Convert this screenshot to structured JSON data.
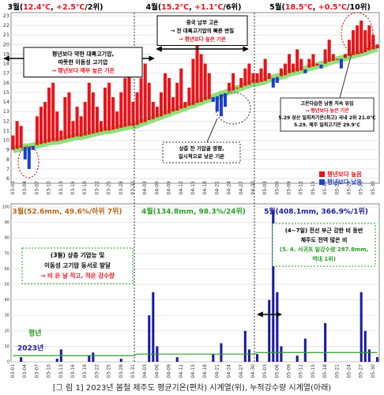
{
  "temperature_chart": {
    "type": "bar",
    "headers": [
      {
        "parts": [
          {
            "text": "3월(",
            "color": "#000000"
          },
          {
            "text": "12.4℃",
            "color": "#e8141b"
          },
          {
            "text": ", ",
            "color": "#000000"
          },
          {
            "text": "+2.5℃",
            "color": "#e8141b"
          },
          {
            "text": "/2위)",
            "color": "#000000"
          }
        ]
      },
      {
        "parts": [
          {
            "text": "4월(",
            "color": "#000000"
          },
          {
            "text": "15.2℃",
            "color": "#e8141b"
          },
          {
            "text": ", ",
            "color": "#000000"
          },
          {
            "text": "+1.1℃",
            "color": "#e8141b"
          },
          {
            "text": "/6위)",
            "color": "#000000"
          }
        ]
      },
      {
        "parts": [
          {
            "text": "5월(",
            "color": "#000000"
          },
          {
            "text": "18.5℃",
            "color": "#e8141b"
          },
          {
            "text": ", ",
            "color": "#000000"
          },
          {
            "text": "+0.5℃",
            "color": "#e8141b"
          },
          {
            "text": "/10위)",
            "color": "#000000"
          }
        ]
      }
    ],
    "categories": [
      "03-01",
      null,
      null,
      "03-04",
      null,
      null,
      "03-07",
      null,
      null,
      "03-10",
      null,
      null,
      "03-13",
      null,
      null,
      "03-16",
      null,
      null,
      "03-19",
      null,
      null,
      "03-22",
      null,
      null,
      "03-25",
      null,
      null,
      "03-28",
      null,
      null,
      "03-31",
      null,
      null,
      "04-03",
      null,
      null,
      "04-06",
      null,
      null,
      "04-09",
      null,
      null,
      "04-12",
      null,
      null,
      "04-15",
      null,
      null,
      "04-18",
      null,
      null,
      "04-21",
      null,
      null,
      "04-24",
      null,
      null,
      "04-27",
      null,
      null,
      "04-30",
      null,
      null,
      "05-03",
      null,
      null,
      "05-06",
      null,
      null,
      "05-09",
      null,
      null,
      "05-12",
      null,
      null,
      "05-15",
      null,
      null,
      "05-18",
      null,
      null,
      "05-21",
      null,
      null,
      "05-24",
      null,
      null,
      "05-27",
      null,
      null,
      "05-30",
      null
    ],
    "values": [
      10.5,
      12.0,
      11.5,
      8.0,
      7.0,
      9.0,
      12.5,
      13.5,
      14.0,
      15.5,
      16.0,
      13.0,
      11.0,
      14.5,
      15.0,
      12.0,
      13.5,
      12.5,
      14.0,
      16.0,
      15.0,
      13.5,
      12.0,
      15.5,
      16.0,
      14.5,
      13.0,
      15.0,
      16.5,
      17.0,
      14.0,
      15.0,
      16.5,
      18.0,
      16.0,
      14.0,
      13.5,
      15.0,
      17.0,
      16.5,
      14.5,
      16.0,
      17.5,
      14.0,
      15.5,
      18.5,
      20.0,
      19.0,
      18.0,
      17.0,
      14.0,
      13.0,
      12.5,
      13.5,
      16.0,
      17.0,
      15.5,
      16.5,
      17.5,
      18.0,
      17.0,
      17.0,
      17.5,
      18.5,
      17.0,
      15.5,
      16.0,
      17.5,
      18.0,
      19.0,
      18.0,
      19.5,
      18.5,
      17.0,
      18.5,
      19.0,
      18.0,
      17.5,
      19.5,
      20.5,
      19.0,
      18.5,
      17.5,
      19.0,
      20.5,
      21.5,
      22.0,
      22.5,
      21.5,
      22.0,
      21.0,
      20.0
    ],
    "normal": [
      9.0,
      9.1,
      9.2,
      9.3,
      9.3,
      9.4,
      9.5,
      9.6,
      9.7,
      9.8,
      9.9,
      9.9,
      10.0,
      10.1,
      10.2,
      10.3,
      10.4,
      10.4,
      10.5,
      10.6,
      10.7,
      10.8,
      10.9,
      11.0,
      11.0,
      11.1,
      11.2,
      11.3,
      11.4,
      11.5,
      11.5,
      11.6,
      11.8,
      11.9,
      12.1,
      12.2,
      12.4,
      12.5,
      12.7,
      12.8,
      13.0,
      13.1,
      13.3,
      13.4,
      13.6,
      13.7,
      13.9,
      14.0,
      14.2,
      14.3,
      14.5,
      14.6,
      14.8,
      14.9,
      15.1,
      15.2,
      15.4,
      15.5,
      15.7,
      15.8,
      16.0,
      16.0,
      16.1,
      16.2,
      16.4,
      16.5,
      16.6,
      16.7,
      16.8,
      17.0,
      17.1,
      17.2,
      17.3,
      17.4,
      17.6,
      17.7,
      17.8,
      17.9,
      18.0,
      18.2,
      18.3,
      18.4,
      18.5,
      18.6,
      18.8,
      18.9,
      19.0,
      19.1,
      19.2,
      19.4,
      19.5,
      19.6
    ],
    "normal_color": "#8fe07a",
    "legend": [
      {
        "label": "평년보다 높음",
        "color": "#e8141b"
      },
      {
        "label": "평년보다 낮음",
        "color": "#1a3fd0"
      }
    ],
    "ylim": [
      6,
      23
    ],
    "yticks": [
      6,
      7,
      8,
      9,
      10,
      11,
      12,
      13,
      14,
      15,
      16,
      17,
      18,
      19,
      20,
      21,
      22,
      23
    ],
    "grid": true,
    "annotations": [
      {
        "lines": [
          {
            "text": "평년보다 약한 대륙고기압,",
            "color": "#000000"
          },
          {
            "text": "따뜻한 이동성 고기압",
            "color": "#000000"
          },
          {
            "text": "→ 평년보다 매우 높은 기온",
            "color": "#e8141b"
          }
        ]
      },
      {
        "lines": [
          {
            "text": "중국 남부 고온",
            "color": "#000000"
          },
          {
            "text": "→ 찬 대륙고기압의 빠른 변질",
            "color": "#000000"
          },
          {
            "text": "→ 평년보다 높은 기온",
            "color": "#e8141b"
          }
        ]
      },
      {
        "lines": [
          {
            "text": "상층 찬 기압골 영향,",
            "color": "#000000"
          },
          {
            "text": "일시적으로 낮은 기온",
            "color": "#000000"
          }
        ]
      },
      {
        "lines": [
          {
            "text": "고온다습한 남풍 지속 유입",
            "color": "#000000"
          },
          {
            "text": "→ 평년보다 높은 기온",
            "color": "#e8141b"
          },
          {
            "text": "5.29 성산 일최저기온(최고) 국내 2위 21.0℃",
            "color": "#000000"
          },
          {
            "text": "5.29. 제주 일최고기온 29.9℃",
            "color": "#000000"
          }
        ]
      }
    ]
  },
  "precipitation_chart": {
    "type": "bar",
    "headers": [
      {
        "text": "3월(52.6mm, 49.6%/하위 7위)",
        "color": "#b5651d"
      },
      {
        "text": "4월(134.8mm, 98.3%/24위)",
        "color": "#2a9d2a"
      },
      {
        "text": "5월(408.1mm, 366.9%/1위)",
        "color": "#1a1aa0"
      }
    ],
    "categories": [
      "03-01",
      null,
      null,
      "03-04",
      null,
      null,
      "03-07",
      null,
      null,
      "03-10",
      null,
      null,
      "03-13",
      null,
      null,
      "03-16",
      null,
      null,
      "03-19",
      null,
      null,
      "03-22",
      null,
      null,
      "03-25",
      null,
      null,
      "03-28",
      null,
      null,
      "03-31",
      null,
      null,
      "04-03",
      null,
      null,
      "04-06",
      null,
      null,
      "04-09",
      null,
      null,
      "04-12",
      null,
      null,
      "04-15",
      null,
      null,
      "04-18",
      null,
      null,
      "04-21",
      null,
      null,
      "04-24",
      null,
      null,
      "04-27",
      null,
      null,
      "04-30",
      null,
      null,
      "05-03",
      null,
      null,
      "05-06",
      null,
      null,
      "05-09",
      null,
      null,
      "05-12",
      null,
      null,
      "05-15",
      null,
      null,
      "05-18",
      null,
      null,
      "05-21",
      null,
      null,
      "05-24",
      null,
      null,
      "05-27",
      null,
      null,
      "05-30",
      null
    ],
    "series": [
      {
        "name": "평년",
        "color": "#2a9d2a",
        "values": [
          4,
          4,
          4,
          4,
          4,
          4,
          4,
          4,
          4,
          4,
          4,
          4,
          4,
          4,
          4,
          4,
          4,
          4,
          4,
          4,
          4,
          4,
          4,
          4,
          4,
          4,
          4,
          4,
          4,
          4,
          4,
          5,
          5,
          5,
          5,
          5,
          5,
          5,
          5,
          5,
          5,
          5,
          5,
          5,
          5,
          5,
          5,
          5,
          5,
          5,
          5,
          5,
          5,
          5,
          5,
          5,
          5,
          5,
          5,
          5,
          5,
          6,
          6,
          6,
          6,
          6,
          6,
          6,
          6,
          6,
          6,
          6,
          6,
          6,
          6,
          6,
          6,
          6,
          6,
          6,
          6,
          6,
          6,
          6,
          6,
          6,
          6,
          6,
          6,
          6,
          6,
          6
        ]
      },
      {
        "name": "2023년",
        "color": "#1a1aa0",
        "values": [
          0,
          0,
          3,
          0,
          0,
          0,
          0,
          0,
          0,
          0,
          0,
          2,
          8,
          0,
          0,
          0,
          0,
          0,
          0,
          4,
          6,
          0,
          0,
          0,
          0,
          0,
          0,
          2,
          0,
          0,
          0,
          0,
          0,
          0,
          30,
          45,
          10,
          0,
          0,
          0,
          0,
          3,
          0,
          0,
          0,
          0,
          0,
          0,
          0,
          0,
          5,
          0,
          12,
          0,
          0,
          0,
          0,
          0,
          20,
          8,
          0,
          5,
          0,
          0,
          40,
          98,
          45,
          10,
          0,
          0,
          0,
          4,
          0,
          15,
          0,
          0,
          0,
          0,
          25,
          0,
          0,
          0,
          0,
          0,
          0,
          0,
          0,
          45,
          20,
          8,
          0,
          3
        ]
      }
    ],
    "ylim": [
      0,
      100
    ],
    "yticks": [
      0,
      10,
      20,
      30,
      40,
      50,
      60,
      70,
      80,
      90,
      100
    ],
    "grid": true,
    "annotations": [
      {
        "lines": [
          {
            "text": "(3월) 상층 기압능 및",
            "color": "#000000"
          },
          {
            "text": "이동성 고기압 동서로 발달",
            "color": "#000000"
          },
          {
            "text": "→ 비 온 날 적고, 적은 강수량",
            "color": "#e8141b"
          }
        ]
      },
      {
        "lines": [
          {
            "text": "(4~7일) 전선 부근 강한 비 동반",
            "color": "#000000"
          },
          {
            "text": "제주도 전역 많은 비",
            "color": "#000000"
          },
          {
            "text": "(5. 4. 서귀포 일강수량 287.8mm,",
            "color": "#2a9d2a"
          },
          {
            "text": "역대 1위)",
            "color": "#2a9d2a"
          }
        ]
      }
    ]
  },
  "caption": "[그 림 1] 2023년 봄철 제주도 평균기온(편차) 시계열(위), 누적강수량 시계열(아래)"
}
